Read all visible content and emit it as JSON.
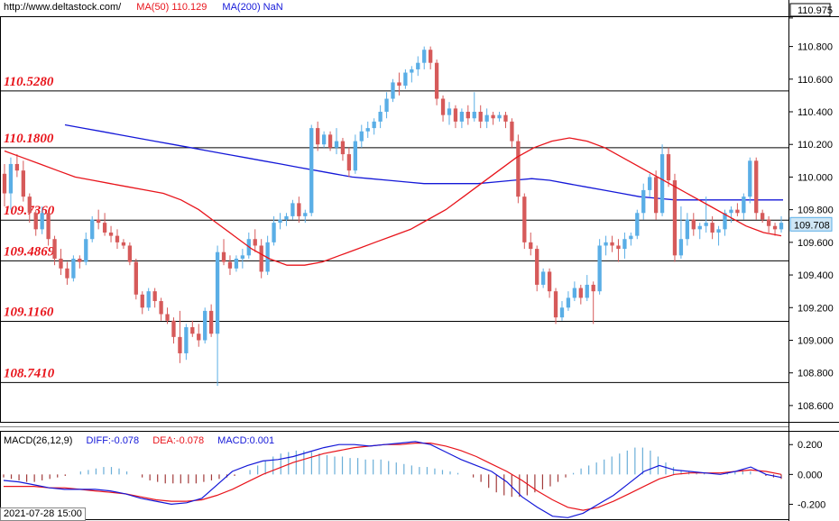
{
  "header": {
    "url": "http://www.deltastock.com/",
    "ma50": "MA(50)  110.129",
    "ma200": "MA(200)  NaN"
  },
  "macd_header": {
    "title": "MACD(26,12,9)",
    "diff": "DIFF:-0.078",
    "dea": "DEA:-0.078",
    "macd": "MACD:0.001"
  },
  "date_label": "2021-07-28 15:00",
  "colors": {
    "up": "#5aaee6",
    "down": "#d65a5a",
    "ma50": "#e8141b",
    "ma200": "#1418d8",
    "level_text": "#e8141b",
    "macd_pos": "#6aaed8",
    "macd_neg": "#a23a3a"
  },
  "chart_data": [
    {
      "type": "candlestick",
      "ylim": [
        108.5,
        110.98
      ],
      "yticks": [
        "110.975",
        "110.800",
        "110.600",
        "110.400",
        "110.200",
        "110.000",
        "109.800",
        "109.600",
        "109.400",
        "109.200",
        "109.000",
        "108.800",
        "108.600"
      ],
      "ytick_values": [
        110.975,
        110.8,
        110.6,
        110.4,
        110.2,
        110.0,
        109.8,
        109.6,
        109.4,
        109.2,
        109.0,
        108.8,
        108.6
      ],
      "current_price": "109.708",
      "current_value": 109.708,
      "levels": [
        {
          "label": "110.5280",
          "value": 110.528
        },
        {
          "label": "110.1800",
          "value": 110.18
        },
        {
          "label": "109.7360",
          "value": 109.736
        },
        {
          "label": "109.4869",
          "value": 109.4869
        },
        {
          "label": "109.1160",
          "value": 109.116
        },
        {
          "label": "108.7410",
          "value": 108.741
        }
      ],
      "candles": [
        [
          110.02,
          110.08,
          109.82,
          109.9
        ],
        [
          109.9,
          110.12,
          109.8,
          110.08
        ],
        [
          110.08,
          110.14,
          110.0,
          110.04
        ],
        [
          110.04,
          110.1,
          109.85,
          109.88
        ],
        [
          109.88,
          109.9,
          109.72,
          109.78
        ],
        [
          109.78,
          109.8,
          109.64,
          109.68
        ],
        [
          109.68,
          109.82,
          109.65,
          109.78
        ],
        [
          109.78,
          109.8,
          109.58,
          109.62
        ],
        [
          109.62,
          109.64,
          109.46,
          109.5
        ],
        [
          109.5,
          109.56,
          109.4,
          109.44
        ],
        [
          109.44,
          109.48,
          109.34,
          109.38
        ],
        [
          109.38,
          109.52,
          109.36,
          109.5
        ],
        [
          109.5,
          109.52,
          109.44,
          109.48
        ],
        [
          109.48,
          109.66,
          109.46,
          109.62
        ],
        [
          109.62,
          109.76,
          109.6,
          109.74
        ],
        [
          109.74,
          109.8,
          109.68,
          109.72
        ],
        [
          109.72,
          109.78,
          109.64,
          109.66
        ],
        [
          109.66,
          109.7,
          109.6,
          109.64
        ],
        [
          109.64,
          109.68,
          109.56,
          109.6
        ],
        [
          109.6,
          109.62,
          109.56,
          109.58
        ],
        [
          109.58,
          109.6,
          109.46,
          109.48
        ],
        [
          109.48,
          109.5,
          109.25,
          109.28
        ],
        [
          109.28,
          109.3,
          109.16,
          109.2
        ],
        [
          109.2,
          109.32,
          109.18,
          109.3
        ],
        [
          109.3,
          109.32,
          109.2,
          109.24
        ],
        [
          109.24,
          109.26,
          109.12,
          109.16
        ],
        [
          109.16,
          109.2,
          109.1,
          109.12
        ],
        [
          109.12,
          109.14,
          108.98,
          109.02
        ],
        [
          109.02,
          109.18,
          108.86,
          108.92
        ],
        [
          108.92,
          109.1,
          108.88,
          109.08
        ],
        [
          109.08,
          109.12,
          109.02,
          109.04
        ],
        [
          109.04,
          109.1,
          108.96,
          109.0
        ],
        [
          109.0,
          109.2,
          108.98,
          109.18
        ],
        [
          109.18,
          109.22,
          109.02,
          109.04
        ],
        [
          109.04,
          109.58,
          108.72,
          109.54
        ],
        [
          109.54,
          109.62,
          109.46,
          109.48
        ],
        [
          109.48,
          109.52,
          109.4,
          109.44
        ],
        [
          109.44,
          109.52,
          109.42,
          109.5
        ],
        [
          109.5,
          109.56,
          109.44,
          109.52
        ],
        [
          109.52,
          109.66,
          109.5,
          109.62
        ],
        [
          109.62,
          109.68,
          109.54,
          109.58
        ],
        [
          109.58,
          109.62,
          109.38,
          109.42
        ],
        [
          109.42,
          109.64,
          109.4,
          109.6
        ],
        [
          109.6,
          109.76,
          109.58,
          109.72
        ],
        [
          109.72,
          109.78,
          109.68,
          109.74
        ],
        [
          109.74,
          109.78,
          109.7,
          109.76
        ],
        [
          109.76,
          109.86,
          109.74,
          109.84
        ],
        [
          109.84,
          109.88,
          109.72,
          109.76
        ],
        [
          109.76,
          109.8,
          109.72,
          109.78
        ],
        [
          109.78,
          110.32,
          109.76,
          110.3
        ],
        [
          110.3,
          110.34,
          110.16,
          110.2
        ],
        [
          110.2,
          110.28,
          110.18,
          110.26
        ],
        [
          110.26,
          110.28,
          110.16,
          110.18
        ],
        [
          110.18,
          110.3,
          110.14,
          110.22
        ],
        [
          110.22,
          110.24,
          110.1,
          110.14
        ],
        [
          110.14,
          110.18,
          110.0,
          110.04
        ],
        [
          110.04,
          110.26,
          110.02,
          110.22
        ],
        [
          110.22,
          110.32,
          110.18,
          110.28
        ],
        [
          110.28,
          110.34,
          110.24,
          110.3
        ],
        [
          110.3,
          110.36,
          110.26,
          110.34
        ],
        [
          110.34,
          110.44,
          110.3,
          110.4
        ],
        [
          110.4,
          110.52,
          110.36,
          110.48
        ],
        [
          110.48,
          110.6,
          110.46,
          110.58
        ],
        [
          110.58,
          110.64,
          110.5,
          110.56
        ],
        [
          110.56,
          110.66,
          110.54,
          110.64
        ],
        [
          110.64,
          110.68,
          110.58,
          110.66
        ],
        [
          110.66,
          110.74,
          110.62,
          110.7
        ],
        [
          110.7,
          110.8,
          110.66,
          110.78
        ],
        [
          110.78,
          110.8,
          110.66,
          110.7
        ],
        [
          110.7,
          110.72,
          110.44,
          110.48
        ],
        [
          110.48,
          110.5,
          110.34,
          110.38
        ],
        [
          110.38,
          110.46,
          110.32,
          110.42
        ],
        [
          110.42,
          110.44,
          110.3,
          110.34
        ],
        [
          110.34,
          110.42,
          110.3,
          110.4
        ],
        [
          110.4,
          110.44,
          110.32,
          110.36
        ],
        [
          110.36,
          110.52,
          110.34,
          110.4
        ],
        [
          110.4,
          110.44,
          110.3,
          110.34
        ],
        [
          110.34,
          110.42,
          110.3,
          110.38
        ],
        [
          110.38,
          110.4,
          110.32,
          110.36
        ],
        [
          110.36,
          110.4,
          110.34,
          110.38
        ],
        [
          110.38,
          110.4,
          110.3,
          110.34
        ],
        [
          110.34,
          110.36,
          110.18,
          110.22
        ],
        [
          110.22,
          110.26,
          109.84,
          109.88
        ],
        [
          109.88,
          109.9,
          109.56,
          109.6
        ],
        [
          109.6,
          109.66,
          109.52,
          109.56
        ],
        [
          109.56,
          109.58,
          109.3,
          109.34
        ],
        [
          109.34,
          109.44,
          109.32,
          109.42
        ],
        [
          109.42,
          109.44,
          109.26,
          109.3
        ],
        [
          109.3,
          109.32,
          109.1,
          109.14
        ],
        [
          109.14,
          109.24,
          109.12,
          109.2
        ],
        [
          109.2,
          109.3,
          109.18,
          109.26
        ],
        [
          109.26,
          109.36,
          109.24,
          109.32
        ],
        [
          109.32,
          109.34,
          109.22,
          109.26
        ],
        [
          109.26,
          109.4,
          109.24,
          109.34
        ],
        [
          109.34,
          109.36,
          109.1,
          109.3
        ],
        [
          109.3,
          109.62,
          109.28,
          109.58
        ],
        [
          109.58,
          109.64,
          109.52,
          109.6
        ],
        [
          109.6,
          109.64,
          109.54,
          109.58
        ],
        [
          109.58,
          109.62,
          109.48,
          109.56
        ],
        [
          109.56,
          109.66,
          109.5,
          109.62
        ],
        [
          109.62,
          109.66,
          109.58,
          109.64
        ],
        [
          109.64,
          109.8,
          109.62,
          109.78
        ],
        [
          109.78,
          109.96,
          109.74,
          109.92
        ],
        [
          109.92,
          110.02,
          109.88,
          110.0
        ],
        [
          110.0,
          110.04,
          109.74,
          109.78
        ],
        [
          109.78,
          110.2,
          109.76,
          110.14
        ],
        [
          110.14,
          110.18,
          109.94,
          109.98
        ],
        [
          109.98,
          110.02,
          109.48,
          109.52
        ],
        [
          109.52,
          109.82,
          109.5,
          109.62
        ],
        [
          109.62,
          109.78,
          109.58,
          109.74
        ],
        [
          109.74,
          109.78,
          109.64,
          109.68
        ],
        [
          109.68,
          109.72,
          109.62,
          109.7
        ],
        [
          109.7,
          109.88,
          109.66,
          109.72
        ],
        [
          109.72,
          109.76,
          109.62,
          109.66
        ],
        [
          109.66,
          109.7,
          109.58,
          109.68
        ],
        [
          109.68,
          109.8,
          109.64,
          109.78
        ],
        [
          109.78,
          109.82,
          109.72,
          109.8
        ],
        [
          109.8,
          109.84,
          109.76,
          109.78
        ],
        [
          109.78,
          109.9,
          109.74,
          109.88
        ],
        [
          109.88,
          110.12,
          109.84,
          110.1
        ],
        [
          110.1,
          110.12,
          109.74,
          109.78
        ],
        [
          109.78,
          109.8,
          109.72,
          109.74
        ],
        [
          109.74,
          109.76,
          109.66,
          109.7
        ],
        [
          109.7,
          109.72,
          109.64,
          109.68
        ],
        [
          109.68,
          109.76,
          109.66,
          109.72
        ]
      ],
      "ma50": [
        110.16,
        110.12,
        110.08,
        110.04,
        110.0,
        109.98,
        109.96,
        109.94,
        109.92,
        109.9,
        109.86,
        109.8,
        109.72,
        109.64,
        109.56,
        109.5,
        109.46,
        109.46,
        109.48,
        109.52,
        109.56,
        109.6,
        109.64,
        109.68,
        109.74,
        109.8,
        109.88,
        109.96,
        110.04,
        110.12,
        110.18,
        110.22,
        110.24,
        110.22,
        110.18,
        110.12,
        110.06,
        110.0,
        109.94,
        109.88,
        109.82,
        109.76,
        109.7,
        109.66,
        109.64
      ],
      "ma200": [
        110.32,
        110.3,
        110.28,
        110.26,
        110.24,
        110.22,
        110.2,
        110.18,
        110.16,
        110.14,
        110.12,
        110.1,
        110.08,
        110.06,
        110.04,
        110.02,
        110.0,
        109.99,
        109.98,
        109.97,
        109.96,
        109.96,
        109.96,
        109.96,
        109.97,
        109.98,
        109.99,
        109.98,
        109.96,
        109.94,
        109.92,
        109.9,
        109.88,
        109.87,
        109.86,
        109.86,
        109.86,
        109.86,
        109.86,
        109.86,
        109.86
      ]
    },
    {
      "type": "bar",
      "ylim": [
        -0.3,
        0.28
      ],
      "yticks": [
        "0.200",
        "0.000",
        "-0.200"
      ],
      "ytick_values": [
        0.2,
        0.0,
        -0.2
      ],
      "histogram": [
        -0.02,
        -0.03,
        -0.04,
        -0.05,
        -0.05,
        -0.04,
        -0.03,
        -0.02,
        -0.01,
        0.0,
        0.02,
        0.03,
        0.04,
        0.05,
        0.05,
        0.04,
        0.02,
        0.0,
        -0.02,
        -0.04,
        -0.05,
        -0.06,
        -0.06,
        -0.06,
        -0.06,
        -0.06,
        -0.05,
        -0.04,
        -0.03,
        -0.02,
        -0.01,
        0.0,
        0.03,
        0.06,
        0.09,
        0.12,
        0.14,
        0.15,
        0.16,
        0.16,
        0.15,
        0.14,
        0.13,
        0.12,
        0.12,
        0.11,
        0.11,
        0.1,
        0.1,
        0.1,
        0.09,
        0.08,
        0.07,
        0.06,
        0.05,
        0.05,
        0.04,
        0.03,
        0.02,
        0.01,
        0.0,
        -0.02,
        -0.05,
        -0.09,
        -0.12,
        -0.14,
        -0.15,
        -0.15,
        -0.14,
        -0.12,
        -0.1,
        -0.08,
        -0.05,
        -0.02,
        0.01,
        0.04,
        0.06,
        0.08,
        0.1,
        0.12,
        0.14,
        0.16,
        0.18,
        0.18,
        0.16,
        0.12,
        0.08,
        0.05,
        0.03,
        0.02,
        0.01,
        0.01,
        0.0,
        0.0,
        0.01,
        0.02,
        0.03,
        0.02,
        0.0,
        -0.01,
        -0.02,
        -0.03
      ],
      "diff": [
        -0.04,
        -0.05,
        -0.07,
        -0.09,
        -0.1,
        -0.1,
        -0.1,
        -0.11,
        -0.13,
        -0.16,
        -0.18,
        -0.2,
        -0.19,
        -0.16,
        -0.07,
        0.02,
        0.06,
        0.09,
        0.1,
        0.12,
        0.15,
        0.18,
        0.2,
        0.2,
        0.19,
        0.2,
        0.21,
        0.22,
        0.2,
        0.15,
        0.1,
        0.06,
        0.02,
        -0.05,
        -0.15,
        -0.22,
        -0.28,
        -0.29,
        -0.26,
        -0.2,
        -0.14,
        -0.06,
        0.02,
        0.06,
        0.03,
        0.02,
        0.01,
        0.0,
        0.02,
        0.05,
        0.0,
        -0.02
      ],
      "dea": [
        -0.08,
        -0.08,
        -0.08,
        -0.09,
        -0.09,
        -0.1,
        -0.11,
        -0.12,
        -0.13,
        -0.15,
        -0.17,
        -0.18,
        -0.18,
        -0.17,
        -0.14,
        -0.1,
        -0.05,
        0.0,
        0.04,
        0.08,
        0.11,
        0.14,
        0.16,
        0.18,
        0.19,
        0.2,
        0.2,
        0.21,
        0.21,
        0.19,
        0.16,
        0.12,
        0.07,
        0.02,
        -0.04,
        -0.11,
        -0.17,
        -0.22,
        -0.24,
        -0.22,
        -0.18,
        -0.13,
        -0.08,
        -0.03,
        0.0,
        0.01,
        0.01,
        0.01,
        0.02,
        0.03,
        0.02,
        0.0
      ]
    }
  ]
}
